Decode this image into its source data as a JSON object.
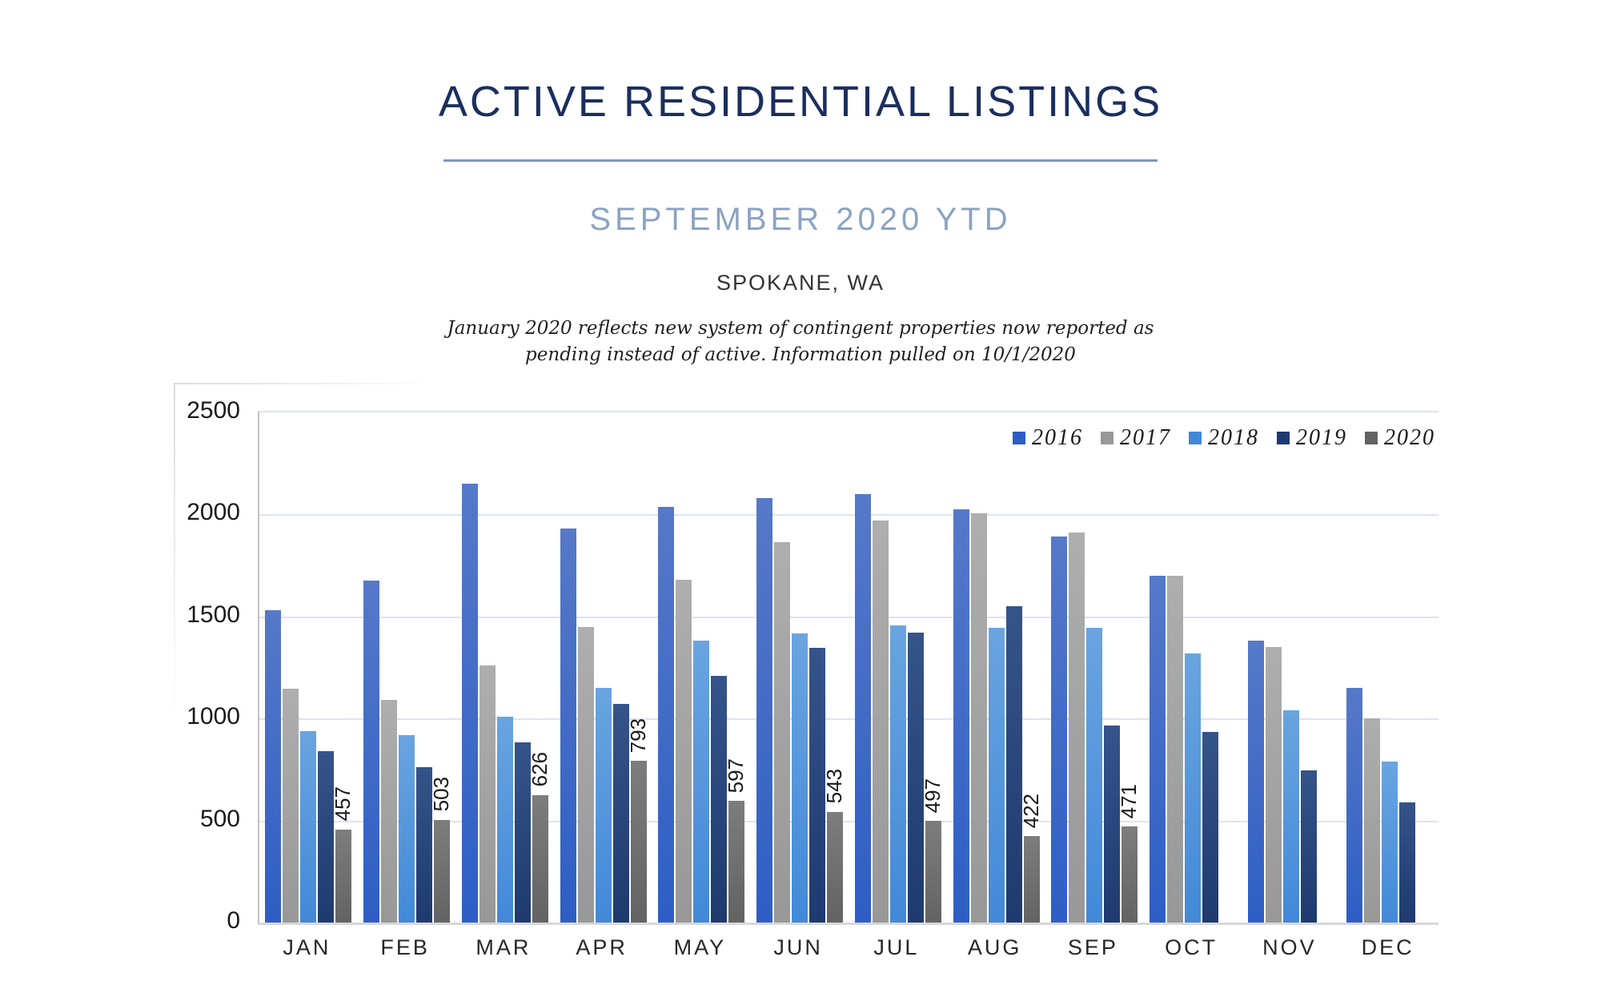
{
  "header": {
    "title": "ACTIVE RESIDENTIAL LISTINGS",
    "subtitle": "SEPTEMBER 2020 YTD",
    "location": "SPOKANE, WA",
    "note_line1": "January 2020 reflects new system of contingent properties now reported as",
    "note_line2": "pending instead of active.  Information pulled on 10/1/2020"
  },
  "colors": {
    "title": "#1b2f5e",
    "title_underline": "#8195ba",
    "subtitle": "#8ba3c1",
    "gridline": "#dce4f3",
    "axis_line": "#c3c3c3"
  },
  "chart_data": {
    "type": "bar",
    "title": "",
    "xlabel": "",
    "ylabel": "",
    "categories": [
      "JAN",
      "FEB",
      "MAR",
      "APR",
      "MAY",
      "JUN",
      "JUL",
      "AUG",
      "SEP",
      "OCT",
      "NOV",
      "DEC"
    ],
    "series": [
      {
        "name": "2016",
        "color": "#2d5ec5",
        "color_top": "#5679c8",
        "values": [
          1530,
          1675,
          2150,
          1930,
          2035,
          2080,
          2100,
          2025,
          1890,
          1700,
          1380,
          1150
        ]
      },
      {
        "name": "2017",
        "color": "#989898",
        "color_top": "#aeaeae",
        "values": [
          1145,
          1090,
          1260,
          1450,
          1680,
          1865,
          1970,
          2005,
          1910,
          1700,
          1350,
          1000
        ]
      },
      {
        "name": "2018",
        "color": "#4189d8",
        "color_top": "#6aa4e0",
        "values": [
          940,
          920,
          1010,
          1150,
          1380,
          1415,
          1455,
          1445,
          1445,
          1320,
          1040,
          790
        ]
      },
      {
        "name": "2019",
        "color": "#1e3a6f",
        "color_top": "#35548a",
        "values": [
          840,
          760,
          885,
          1070,
          1210,
          1345,
          1420,
          1550,
          965,
          935,
          745,
          590
        ]
      },
      {
        "name": "2020",
        "color": "#636363",
        "color_top": "#7d7d7d",
        "values": [
          457,
          503,
          626,
          793,
          597,
          543,
          497,
          422,
          471,
          null,
          null,
          null
        ]
      }
    ],
    "data_label_series": "2020",
    "data_labels": [
      457,
      503,
      626,
      793,
      597,
      543,
      497,
      422,
      471,
      null,
      null,
      null
    ],
    "ylim": [
      0,
      2500
    ],
    "yticks": [
      0,
      500,
      1000,
      1500,
      2000,
      2500
    ],
    "grid": true,
    "legend_position": "top-right",
    "legend_labels": [
      "2016",
      "2017",
      "2018",
      "2019",
      "2020"
    ]
  }
}
